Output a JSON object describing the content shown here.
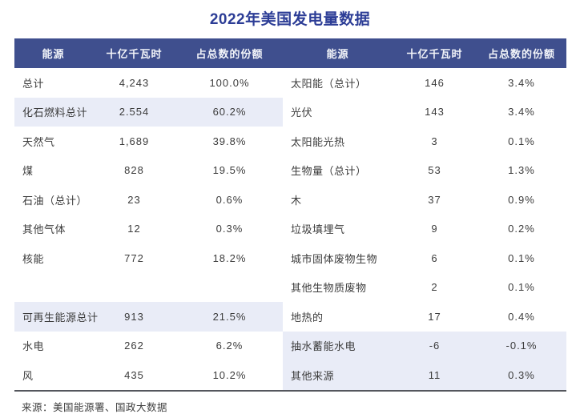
{
  "title": "2022年美国发电量数据",
  "source": "来源：美国能源署、国政大数据",
  "columns": [
    "能源",
    "十亿千瓦时",
    "占总数的份额"
  ],
  "colors": {
    "title_blue": "#2c3d96",
    "header_bg": "#3f4f8e",
    "header_text": "#f2f4f9",
    "row_highlight": "#e9ecf7",
    "body_text": "#3c3c3c",
    "bottom_line": "#54575d",
    "background": "#ffffff"
  },
  "left_rows": [
    {
      "name": "总计",
      "value": "4,243",
      "share": "100.0%",
      "highlight": false
    },
    {
      "name": "化石燃料总计",
      "value": "2.554",
      "share": "60.2%",
      "highlight": true
    },
    {
      "name": "天然气",
      "value": "1,689",
      "share": "39.8%",
      "highlight": false
    },
    {
      "name": "煤",
      "value": "828",
      "share": "19.5%",
      "highlight": false
    },
    {
      "name": "石油（总计）",
      "value": "23",
      "share": "0.6%",
      "highlight": false
    },
    {
      "name": "其他气体",
      "value": "12",
      "share": "0.3%",
      "highlight": false
    },
    {
      "name": "核能",
      "value": "772",
      "share": "18.2%",
      "highlight": false
    },
    {
      "name": "",
      "value": "",
      "share": "",
      "highlight": false
    },
    {
      "name": "可再生能源总计",
      "value": "913",
      "share": "21.5%",
      "highlight": true
    },
    {
      "name": "水电",
      "value": "262",
      "share": "6.2%",
      "highlight": false
    },
    {
      "name": "风",
      "value": "435",
      "share": "10.2%",
      "highlight": false
    }
  ],
  "right_rows": [
    {
      "name": "太阳能（总计）",
      "value": "146",
      "share": "3.4%",
      "highlight": false
    },
    {
      "name": "光伏",
      "value": "143",
      "share": "3.4%",
      "highlight": false
    },
    {
      "name": "太阳能光热",
      "value": "3",
      "share": "0.1%",
      "highlight": false
    },
    {
      "name": "生物量（总计）",
      "value": "53",
      "share": "1.3%",
      "highlight": false
    },
    {
      "name": "木",
      "value": "37",
      "share": "0.9%",
      "highlight": false
    },
    {
      "name": "垃圾填埋气",
      "value": "9",
      "share": "0.2%",
      "highlight": false
    },
    {
      "name": "城市固体废物生物",
      "value": "6",
      "share": "0.1%",
      "highlight": false
    },
    {
      "name": "其他生物质废物",
      "value": "2",
      "share": "0.1%",
      "highlight": false
    },
    {
      "name": "地热的",
      "value": "17",
      "share": "0.4%",
      "highlight": false
    },
    {
      "name": "抽水蓄能水电",
      "value": "-6",
      "share": "-0.1%",
      "highlight": true
    },
    {
      "name": "其他来源",
      "value": "11",
      "share": "0.3%",
      "highlight": true
    }
  ],
  "chart_data": {
    "type": "table",
    "title": "2022年美国发电量数据",
    "columns": [
      "能源",
      "十亿千瓦时",
      "占总数的份额"
    ],
    "rows": [
      [
        "总计",
        4243,
        "100.0%"
      ],
      [
        "化石燃料总计",
        2554,
        "60.2%"
      ],
      [
        "天然气",
        1689,
        "39.8%"
      ],
      [
        "煤",
        828,
        "19.5%"
      ],
      [
        "石油（总计）",
        23,
        "0.6%"
      ],
      [
        "其他气体",
        12,
        "0.3%"
      ],
      [
        "核能",
        772,
        "18.2%"
      ],
      [
        "可再生能源总计",
        913,
        "21.5%"
      ],
      [
        "水电",
        262,
        "6.2%"
      ],
      [
        "风",
        435,
        "10.2%"
      ],
      [
        "太阳能（总计）",
        146,
        "3.4%"
      ],
      [
        "光伏",
        143,
        "3.4%"
      ],
      [
        "太阳能光热",
        3,
        "0.1%"
      ],
      [
        "生物量（总计）",
        53,
        "1.3%"
      ],
      [
        "木",
        37,
        "0.9%"
      ],
      [
        "垃圾填埋气",
        9,
        "0.2%"
      ],
      [
        "城市固体废物生物",
        6,
        "0.1%"
      ],
      [
        "其他生物质废物",
        2,
        "0.1%"
      ],
      [
        "地热的",
        17,
        "0.4%"
      ],
      [
        "抽水蓄能水电",
        -6,
        "-0.1%"
      ],
      [
        "其他来源",
        11,
        "0.3%"
      ]
    ],
    "source": "来源：美国能源署、国政大数据",
    "notes": "Two-column side-by-side table layout; unit column is billion kWh (十亿千瓦时)."
  }
}
